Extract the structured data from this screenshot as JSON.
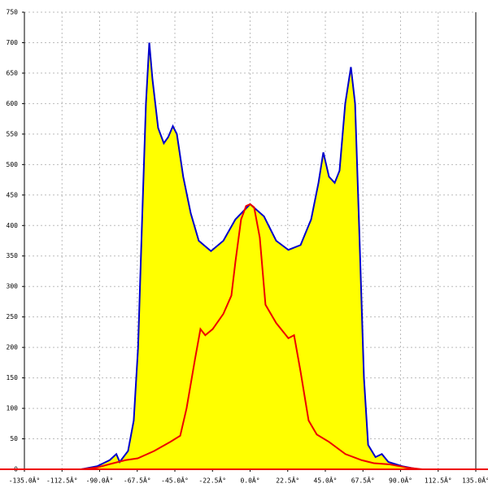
{
  "chart_data": {
    "type": "area-line",
    "xlim": [
      -135,
      135
    ],
    "ylim": [
      0,
      750
    ],
    "xticks": [
      {
        "value": -135,
        "label": "-135.0Â°"
      },
      {
        "value": -112.5,
        "label": "-112.5Â°"
      },
      {
        "value": -90,
        "label": "-90.0Â°"
      },
      {
        "value": -67.5,
        "label": "-67.5Â°"
      },
      {
        "value": -45,
        "label": "-45.0Â°"
      },
      {
        "value": -22.5,
        "label": "-22.5Â°"
      },
      {
        "value": 0,
        "label": "0.0Â°"
      },
      {
        "value": 22.5,
        "label": "22.5Â°"
      },
      {
        "value": 45,
        "label": "45.0Â°"
      },
      {
        "value": 67.5,
        "label": "67.5Â°"
      },
      {
        "value": 90,
        "label": "90.0Â°"
      },
      {
        "value": 112.5,
        "label": "112.5Â°"
      },
      {
        "value": 135,
        "label": "135.0Â°"
      }
    ],
    "yticks": [
      0,
      50,
      100,
      150,
      200,
      250,
      300,
      350,
      400,
      450,
      500,
      550,
      600,
      650,
      700,
      750
    ],
    "grid": true,
    "series": [
      {
        "kind": "area",
        "color": "#0000cc",
        "fill": "#ffff00",
        "x": [
          -101,
          -91.5,
          -84,
          -80,
          -78,
          -73,
          -69.6,
          -67,
          -64.7,
          -62.3,
          -60.3,
          -58.4,
          -55,
          -51.6,
          -49,
          -46.2,
          -43.8,
          -40,
          -35.5,
          -30.7,
          -23.4,
          -16,
          -8.8,
          0,
          8.3,
          15.6,
          22.9,
          30.2,
          36.5,
          40.9,
          43.8,
          47.2,
          50.6,
          53.5,
          56.9,
          60.3,
          62.8,
          65.2,
          68.1,
          70.6,
          75,
          78.8,
          82.7,
          91,
          100.7
        ],
        "values": [
          0,
          5,
          15,
          25,
          12,
          30,
          80,
          200,
          400,
          600,
          700,
          640,
          560,
          535,
          545,
          563,
          550,
          480,
          420,
          375,
          358,
          375,
          410,
          435,
          415,
          375,
          360,
          368,
          410,
          470,
          520,
          480,
          470,
          490,
          600,
          660,
          600,
          400,
          150,
          40,
          20,
          25,
          12,
          5,
          0
        ]
      },
      {
        "kind": "line",
        "color": "#ee0000",
        "x": [
          -101,
          -91.5,
          -81.8,
          -74.5,
          -67.2,
          -57.4,
          -47.7,
          -41.8,
          -38,
          -33,
          -29.7,
          -26.8,
          -22.4,
          -16,
          -11.2,
          -8.8,
          -5.4,
          -2.4,
          0,
          2.4,
          5.8,
          9.2,
          15.6,
          22.9,
          26.3,
          30.2,
          35,
          39.9,
          47.2,
          57,
          66.7,
          74,
          83.7,
          93.4,
          103
        ],
        "values": [
          0,
          3,
          10,
          15,
          18,
          30,
          45,
          55,
          100,
          180,
          230,
          220,
          230,
          255,
          285,
          340,
          410,
          432,
          435,
          430,
          380,
          270,
          240,
          215,
          220,
          160,
          80,
          57,
          45,
          25,
          15,
          10,
          8,
          3,
          0
        ]
      }
    ]
  }
}
